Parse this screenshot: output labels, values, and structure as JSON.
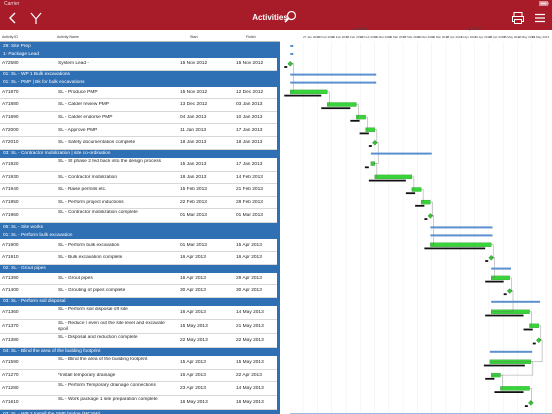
{
  "status": {
    "carrier": "Carrier",
    "clock": "",
    "battery": ""
  },
  "nav": {
    "title": "Activities"
  },
  "table_header": {
    "id": "Activity ID",
    "name": "Activity Name",
    "start": "Start",
    "finish": "Finish"
  },
  "gantt_header": {
    "months": [
      "Jan 2013",
      "Apr 2013"
    ],
    "weeks": [
      "27 Jan 2013",
      "03 Feb 2013",
      "10 Feb 2013",
      "17 Feb 2013",
      "24 Feb 2013",
      "03 Mar 2013",
      "10 Mar 2013",
      "17 Mar 2013",
      "24 Mar 2013",
      "31 Mar 2013",
      "07 Apr 2013",
      "14 Apr 2013",
      "21 Apr 2013",
      "28 Apr 2013",
      "05 May 2013",
      "12 May 2013",
      "19 May 2013",
      "26 May 2013"
    ]
  },
  "rows": [
    {
      "kind": "group",
      "label": "29: Site Prep"
    },
    {
      "kind": "group",
      "label": "1: Package Lead"
    },
    {
      "kind": "task",
      "id": "A72580",
      "name": "System Lead -",
      "start": "15 Nov 2012",
      "finish": "15 Nov 2012"
    },
    {
      "kind": "group",
      "label": "01: SL - WP 1 Bulk excavations"
    },
    {
      "kind": "group",
      "label": "01: SL - PMP | Bk for bulk excavations"
    },
    {
      "kind": "task",
      "id": "A71870",
      "name": "SL - Produce PMP",
      "start": "15 Nov 2012",
      "finish": "12 Dec 2012"
    },
    {
      "kind": "task",
      "id": "A71880",
      "name": "SL - Calder review PMP",
      "start": "13 Dec 2012",
      "finish": "03 Jan 2013"
    },
    {
      "kind": "task",
      "id": "A71890",
      "name": "SL - Calder endorse PMP",
      "start": "04 Jan 2013",
      "finish": "10 Jan 2013"
    },
    {
      "kind": "task",
      "id": "A72000",
      "name": "SL - Approve PMP",
      "start": "11 Jan 2013",
      "finish": "17 Jan 2013"
    },
    {
      "kind": "task",
      "id": "A72010",
      "name": "SL - Safety documentation complete",
      "start": "18 Jan 2013",
      "finish": "18 Jan 2013"
    },
    {
      "kind": "group",
      "label": "03: SL - Contractor mobilization | site co-ordination"
    },
    {
      "kind": "task",
      "id": "A71920",
      "name": "SL - St phase 2 fed back into the design process",
      "start": "15 Jan 2013",
      "finish": "17 Jan 2013"
    },
    {
      "kind": "task",
      "id": "A71930",
      "name": "SL - Contractor mobilization",
      "start": "18 Jan 2013",
      "finish": "14 Feb 2013"
    },
    {
      "kind": "task",
      "id": "A71940",
      "name": "SL - Raise permits etc.",
      "start": "15 Feb 2013",
      "finish": "21 Feb 2013"
    },
    {
      "kind": "task",
      "id": "A71950",
      "name": "SL - Perform project inductions",
      "start": "22 Feb 2013",
      "finish": "28 Feb 2013"
    },
    {
      "kind": "task",
      "id": "A71960",
      "name": "SL - Contractor mobilization complete",
      "start": "01 Mar 2013",
      "finish": "01 Mar 2013"
    },
    {
      "kind": "group",
      "label": "05: SL - Site works"
    },
    {
      "kind": "group",
      "label": "01: SL - Perform bulk excavation"
    },
    {
      "kind": "task",
      "id": "A71900",
      "name": "SL - Perform bulk excavation",
      "start": "01 Mar 2013",
      "finish": "15 Apr 2013"
    },
    {
      "kind": "task",
      "id": "A71910",
      "name": "SL - Bulk excavation complete",
      "start": "16 Apr 2013",
      "finish": "16 Apr 2013"
    },
    {
      "kind": "group",
      "label": "02: SL - Grout pipes"
    },
    {
      "kind": "task",
      "id": "A71390",
      "name": "SL - Grout pipes",
      "start": "16 Apr 2013",
      "finish": "29 Apr 2013"
    },
    {
      "kind": "task",
      "id": "A71400",
      "name": "SL - Grouting of pipes complete",
      "start": "30 Apr 2013",
      "finish": "30 Apr 2013"
    },
    {
      "kind": "group",
      "label": "03: SL - Perform soil disposal"
    },
    {
      "kind": "task",
      "id": "A71360",
      "name": "SL - Perform soil disposal off site",
      "start": "16 Apr 2013",
      "finish": "14 May 2013"
    },
    {
      "kind": "task",
      "id": "A71370",
      "name": "SL - Reduce / even out the site level and excavate spoil",
      "start": "15 May 2013",
      "finish": "21 May 2013"
    },
    {
      "kind": "task",
      "id": "A71380",
      "name": "SL - Disposal and reduction complete",
      "start": "22 May 2013",
      "finish": "22 May 2013"
    },
    {
      "kind": "group",
      "label": "04: SL - Blind the area of the building footprint"
    },
    {
      "kind": "task",
      "id": "A71590",
      "name": "SL - Blind the area of the building footprint",
      "start": "15 Apr 2013",
      "finish": "15 May 2013"
    },
    {
      "kind": "task",
      "id": "A71270",
      "name": "*Install temporary drainage",
      "start": "16 Apr 2013",
      "finish": "22 Apr 2013"
    },
    {
      "kind": "task",
      "id": "A71280",
      "name": "SL - Perform Temporary drainage connections",
      "start": "23 Apr 2013",
      "finish": "14 May 2013"
    },
    {
      "kind": "task",
      "id": "A71610",
      "name": "SL - Work package 1 site preparation complete",
      "start": "16 May 2013",
      "finish": "16 May 2013"
    },
    {
      "kind": "group",
      "label": "03: SL - WP 2 Install the SMF bridge (MCSW)"
    }
  ],
  "timeline": {
    "start": "2012-11-08",
    "end": "2013-06-01"
  }
}
